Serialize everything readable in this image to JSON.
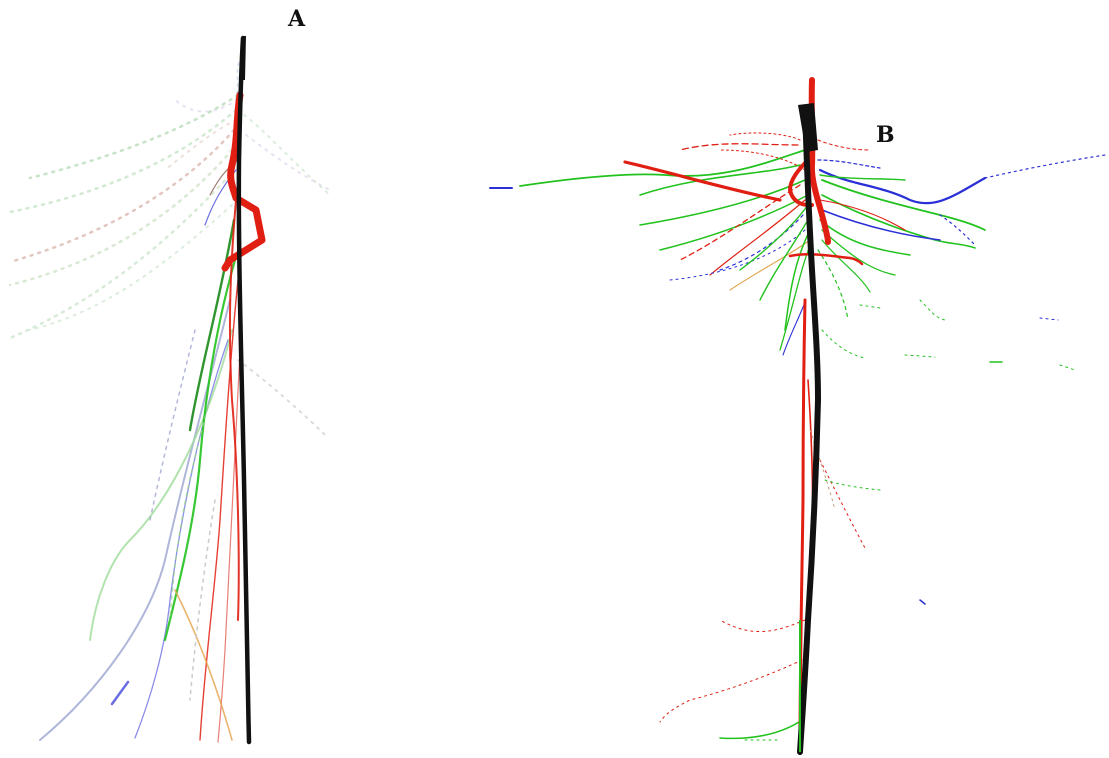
{
  "figure": {
    "panels": [
      {
        "label": "A",
        "name": "root-system-a"
      },
      {
        "label": "B",
        "name": "root-system-b"
      }
    ],
    "root_colors": {
      "taproot": "#111111",
      "red": "#e01e12",
      "green": "#22c21e",
      "blue": "#2a2fd6",
      "orange": "#e3a24a",
      "gray": "#8a8a8a"
    }
  }
}
